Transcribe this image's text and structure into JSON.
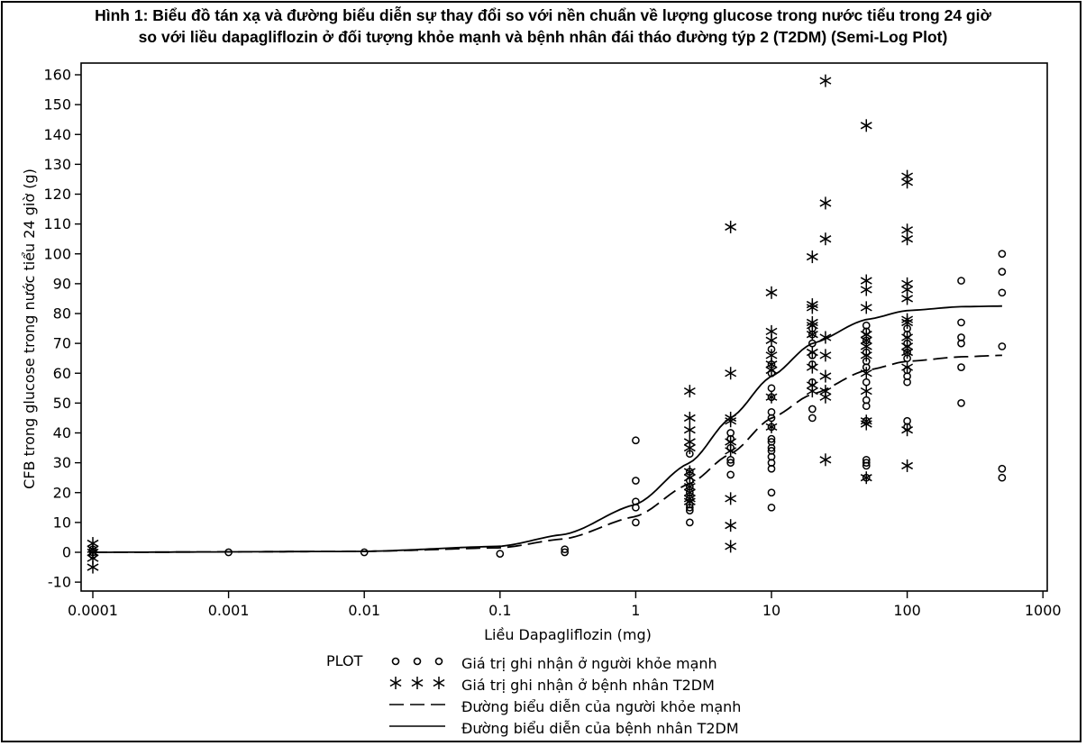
{
  "figure": {
    "title_line1": "Hình 1:  Biểu đồ tán xạ và đường biểu diễn sự thay đổi so với nền chuẩn về lượng glucose trong nước tiểu trong 24 giờ",
    "title_line2": "so với liều dapagliflozin ở đối tượng khỏe mạnh và bệnh nhân đái tháo đường týp 2 (T2DM) (Semi-Log Plot)"
  },
  "legend": {
    "header": "PLOT",
    "items": [
      {
        "symbol": "circle",
        "label": "Giá trị ghi nhận ở người khỏe mạnh"
      },
      {
        "symbol": "asterisk",
        "label": "Giá trị ghi nhận ở bệnh nhân T2DM"
      },
      {
        "symbol": "dashed-line",
        "label": "Đường biểu diễn của người khỏe mạnh"
      },
      {
        "symbol": "solid-line",
        "label": "Đường biểu diễn của bệnh nhân T2DM"
      }
    ]
  },
  "chart_data": {
    "type": "scatter",
    "title": "Hình 1: Biểu đồ tán xạ và đường biểu diễn sự thay đổi so với nền chuẩn về lượng glucose trong nước tiểu trong 24 giờ so với liều dapagliflozin ở đối tượng khỏe mạnh và bệnh nhân đái tháo đường týp 2 (T2DM) (Semi-Log Plot)",
    "xlabel": "Liều Dapagliflozin (mg)",
    "ylabel": "CFB trong glucose trong nước tiểu 24 giờ (g)",
    "xscale": "log",
    "xlim": [
      0.0001,
      1000
    ],
    "ylim": [
      -10,
      160
    ],
    "xticks": [
      "0.0001",
      "0.001",
      "0.01",
      "0.1",
      "1",
      "10",
      "100",
      "1000"
    ],
    "yticks": [
      -10,
      0,
      10,
      20,
      30,
      40,
      50,
      60,
      70,
      80,
      90,
      100,
      110,
      120,
      130,
      140,
      150,
      160
    ],
    "grid": false,
    "legend_position": "bottom",
    "series": [
      {
        "name": "Giá trị ghi nhận ở người khỏe mạnh",
        "marker": "circle",
        "points": [
          [
            0.0001,
            0
          ],
          [
            0.0001,
            1
          ],
          [
            0.0001,
            -1
          ],
          [
            0.001,
            0
          ],
          [
            0.01,
            0
          ],
          [
            0.1,
            -0.5
          ],
          [
            0.3,
            0
          ],
          [
            0.3,
            1
          ],
          [
            1,
            37.5
          ],
          [
            1,
            24
          ],
          [
            1,
            17
          ],
          [
            1,
            15
          ],
          [
            1,
            10
          ],
          [
            2.5,
            33
          ],
          [
            2.5,
            27
          ],
          [
            2.5,
            24
          ],
          [
            2.5,
            22
          ],
          [
            2.5,
            20
          ],
          [
            2.5,
            18
          ],
          [
            2.5,
            16
          ],
          [
            2.5,
            15
          ],
          [
            2.5,
            14
          ],
          [
            2.5,
            10
          ],
          [
            5,
            40
          ],
          [
            5,
            38
          ],
          [
            5,
            35
          ],
          [
            5,
            31
          ],
          [
            5,
            30
          ],
          [
            5,
            26
          ],
          [
            10,
            68
          ],
          [
            10,
            63
          ],
          [
            10,
            60
          ],
          [
            10,
            55
          ],
          [
            10,
            52
          ],
          [
            10,
            47
          ],
          [
            10,
            45
          ],
          [
            10,
            42
          ],
          [
            10,
            38
          ],
          [
            10,
            37
          ],
          [
            10,
            35
          ],
          [
            10,
            34
          ],
          [
            10,
            32
          ],
          [
            10,
            30
          ],
          [
            10,
            28
          ],
          [
            10,
            20
          ],
          [
            10,
            15
          ],
          [
            20,
            75
          ],
          [
            20,
            73
          ],
          [
            20,
            70
          ],
          [
            20,
            66
          ],
          [
            20,
            63
          ],
          [
            20,
            57
          ],
          [
            20,
            48
          ],
          [
            20,
            45
          ],
          [
            50,
            76
          ],
          [
            50,
            74
          ],
          [
            50,
            71
          ],
          [
            50,
            67
          ],
          [
            50,
            64
          ],
          [
            50,
            62
          ],
          [
            50,
            57
          ],
          [
            50,
            51
          ],
          [
            50,
            49
          ],
          [
            50,
            44
          ],
          [
            50,
            31
          ],
          [
            50,
            30
          ],
          [
            50,
            29
          ],
          [
            50,
            25
          ],
          [
            100,
            75
          ],
          [
            100,
            73
          ],
          [
            100,
            70
          ],
          [
            100,
            67
          ],
          [
            100,
            65
          ],
          [
            100,
            61
          ],
          [
            100,
            59
          ],
          [
            100,
            57
          ],
          [
            100,
            44
          ],
          [
            100,
            42
          ],
          [
            250,
            91
          ],
          [
            250,
            77
          ],
          [
            250,
            72
          ],
          [
            250,
            70
          ],
          [
            250,
            62
          ],
          [
            250,
            50
          ],
          [
            500,
            100
          ],
          [
            500,
            94
          ],
          [
            500,
            87
          ],
          [
            500,
            69
          ],
          [
            500,
            28
          ],
          [
            500,
            25
          ]
        ]
      },
      {
        "name": "Giá trị ghi nhận ở bệnh nhân T2DM",
        "marker": "asterisk",
        "points": [
          [
            0.0001,
            3
          ],
          [
            0.0001,
            1
          ],
          [
            0.0001,
            0
          ],
          [
            0.0001,
            -2
          ],
          [
            0.0001,
            -5
          ],
          [
            2.5,
            54
          ],
          [
            2.5,
            45
          ],
          [
            2.5,
            41
          ],
          [
            2.5,
            37
          ],
          [
            2.5,
            35
          ],
          [
            2.5,
            27
          ],
          [
            2.5,
            25
          ],
          [
            2.5,
            22
          ],
          [
            2.5,
            20
          ],
          [
            2.5,
            18
          ],
          [
            2.5,
            17
          ],
          [
            5,
            109
          ],
          [
            5,
            60
          ],
          [
            5,
            45
          ],
          [
            5,
            44
          ],
          [
            5,
            37
          ],
          [
            5,
            34
          ],
          [
            5,
            18
          ],
          [
            5,
            9
          ],
          [
            5,
            2
          ],
          [
            10,
            87
          ],
          [
            10,
            74
          ],
          [
            10,
            71
          ],
          [
            10,
            66
          ],
          [
            10,
            63
          ],
          [
            10,
            61
          ],
          [
            10,
            52
          ],
          [
            10,
            42
          ],
          [
            20,
            99
          ],
          [
            20,
            83
          ],
          [
            20,
            82
          ],
          [
            20,
            77
          ],
          [
            20,
            76
          ],
          [
            20,
            73
          ],
          [
            20,
            67
          ],
          [
            20,
            62
          ],
          [
            20,
            56
          ],
          [
            20,
            54
          ],
          [
            25,
            158
          ],
          [
            25,
            117
          ],
          [
            25,
            105
          ],
          [
            25,
            72
          ],
          [
            25,
            66
          ],
          [
            25,
            59
          ],
          [
            25,
            54
          ],
          [
            25,
            52
          ],
          [
            25,
            31
          ],
          [
            50,
            143
          ],
          [
            50,
            91
          ],
          [
            50,
            88
          ],
          [
            50,
            82
          ],
          [
            50,
            73
          ],
          [
            50,
            71
          ],
          [
            50,
            69
          ],
          [
            50,
            66
          ],
          [
            50,
            60
          ],
          [
            50,
            54
          ],
          [
            50,
            44
          ],
          [
            50,
            43
          ],
          [
            50,
            25
          ],
          [
            100,
            126
          ],
          [
            100,
            124
          ],
          [
            100,
            108
          ],
          [
            100,
            105
          ],
          [
            100,
            90
          ],
          [
            100,
            88
          ],
          [
            100,
            85
          ],
          [
            100,
            78
          ],
          [
            100,
            77
          ],
          [
            100,
            72
          ],
          [
            100,
            69
          ],
          [
            100,
            67
          ],
          [
            100,
            62
          ],
          [
            100,
            41
          ],
          [
            100,
            29
          ]
        ]
      },
      {
        "name": "Đường biểu diễn của người khỏe mạnh",
        "style": "dashed",
        "x": [
          0.0001,
          0.01,
          0.1,
          0.3,
          1,
          2.5,
          5,
          10,
          20,
          50,
          100,
          250,
          500
        ],
        "y": [
          0,
          0.3,
          1.5,
          4.5,
          12,
          23,
          33,
          45,
          53,
          61,
          64,
          65.5,
          66
        ]
      },
      {
        "name": "Đường biểu diễn của bệnh nhân T2DM",
        "style": "solid",
        "x": [
          0.0001,
          0.01,
          0.1,
          0.3,
          1,
          2.5,
          5,
          10,
          20,
          50,
          100,
          250,
          500
        ],
        "y": [
          0,
          0.3,
          2,
          6,
          16,
          30,
          45,
          59,
          70,
          78,
          81,
          82.3,
          82.5
        ]
      }
    ]
  }
}
